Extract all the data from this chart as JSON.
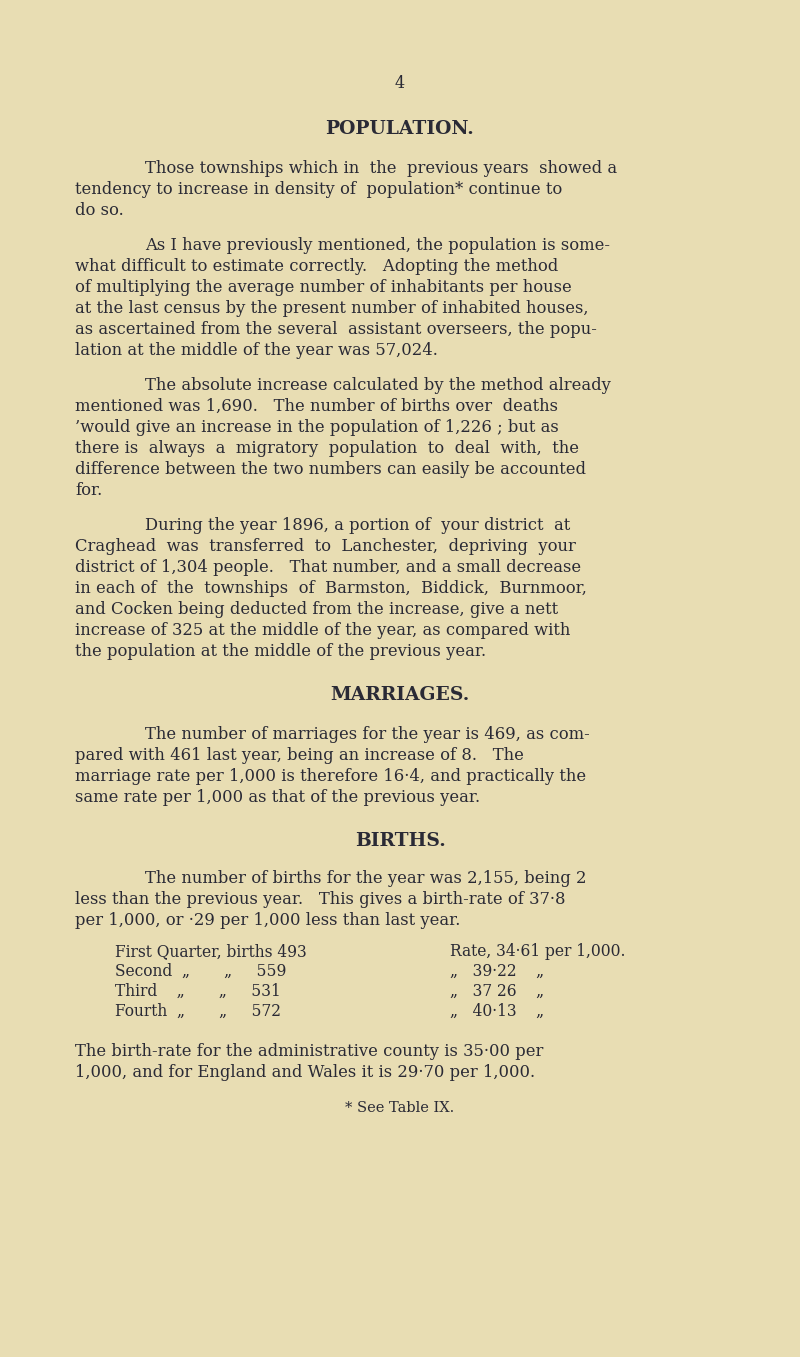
{
  "background_color": "#e8ddb3",
  "text_color": "#2a2a35",
  "page_number": "4",
  "title_population": "POPULATION.",
  "title_marriages": "MARRIAGES.",
  "title_births": "BIRTHS.",
  "font_size_body": 11.8,
  "font_size_title": 13.5,
  "font_size_page": 11.5,
  "font_size_quarter": 11.2,
  "font_size_footnote": 10.5,
  "para1_lines": [
    "Those townships which in  the  previous years  showed a",
    "tendency to increase in density of  population* continue to",
    "do so."
  ],
  "para2_lines": [
    "As I have previously mentioned, the population is some-",
    "what difficult to estimate correctly.   Adopting the method",
    "of multiplying the average number of inhabitants per house",
    "at the last census by the present number of inhabited houses,",
    "as ascertained from the several  assistant overseers, the popu-",
    "lation at the middle of the year was 57,024."
  ],
  "para3_lines": [
    "The absolute increase calculated by the method already",
    "mentioned was 1,690.   The number of births over  deaths",
    "’would give an increase in the population of 1,226 ; but as",
    "there is  always  a  migratory  population  to  deal  with,  the",
    "difference between the two numbers can easily be accounted",
    "for."
  ],
  "para4_lines": [
    "During the year 1896, a portion of  your district  at",
    "Craghead  was  transferred  to  Lanchester,  depriving  your",
    "district of 1,304 people.   That number, and a small decrease",
    "in each of  the  townships  of  Barmston,  Biddick,  Burnmoor,",
    "and Cocken being deducted from the increase, give a nett",
    "increase of 325 at the middle of the year, as compared with",
    "the population at the middle of the previous year."
  ],
  "para5_lines": [
    "The number of marriages for the year is 469, as com-",
    "pared with 461 last year, being an increase of 8.   The",
    "marriage rate per 1,000 is therefore 16·4, and practically the",
    "same rate per 1,000 as that of the previous year."
  ],
  "para6_lines": [
    "The number of births for the year was 2,155, being 2",
    "less than the previous year.   This gives a birth-rate of 37·8",
    "per 1,000, or ·29 per 1,000 less than last year."
  ],
  "quarter_left": [
    "First Quarter, births 493",
    "Second  „       „     559",
    "Third    „       „     531",
    "Fourth  „       „     572"
  ],
  "quarter_right": [
    "Rate, 34·61 per 1,000.",
    "„   39·22    „",
    "„   37 26    „",
    "„   40·13    „"
  ],
  "para7_lines": [
    "The birth-rate for the administrative county is 35·00 per",
    "1,000, and for England and Wales it is 29·70 per 1,000."
  ],
  "footnote": "* See Table IX."
}
